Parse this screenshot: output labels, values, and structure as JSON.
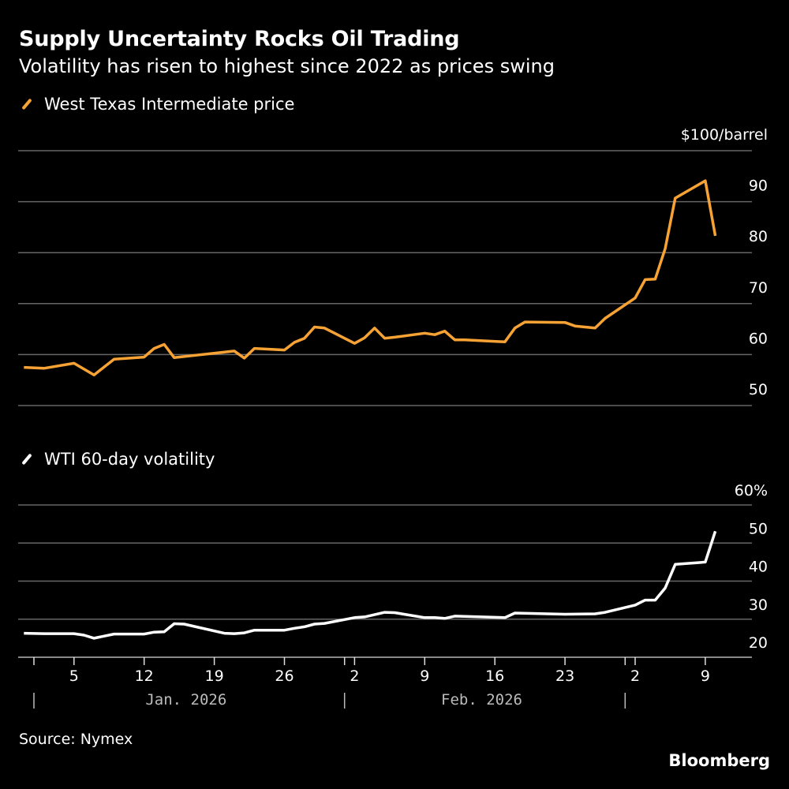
{
  "header": {
    "title": "Supply Uncertainty Rocks Oil Trading",
    "subtitle": "Volatility has risen to highest since 2022 as prices swing"
  },
  "footer": {
    "source": "Source: Nymex",
    "brand": "Bloomberg"
  },
  "colors": {
    "background": "#000000",
    "price_line": "#f7a234",
    "volatility_line": "#ffffff",
    "gridline": "#666666",
    "text": "#ffffff",
    "month_label": "#bbbbbb"
  },
  "chart_data": [
    {
      "type": "line",
      "title": "West Texas Intermediate price",
      "legend": "West Texas Intermediate price",
      "unit_label": "$100/barrel",
      "yticks": [
        50,
        60,
        70,
        80,
        90,
        100
      ],
      "ytick_labels": [
        "50",
        "60",
        "70",
        "80",
        "90",
        "$100/barrel"
      ],
      "ylim": [
        50,
        100
      ],
      "grid": true,
      "x_dates": [
        "2025-12-31",
        "2026-01-02",
        "2026-01-05",
        "2026-01-07",
        "2026-01-09",
        "2026-01-12",
        "2026-01-13",
        "2026-01-14",
        "2026-01-15",
        "2026-01-21",
        "2026-01-22",
        "2026-01-23",
        "2026-01-26",
        "2026-01-27",
        "2026-01-28",
        "2026-01-29",
        "2026-01-30",
        "2026-02-02",
        "2026-02-03",
        "2026-02-04",
        "2026-02-05",
        "2026-02-06",
        "2026-02-09",
        "2026-02-10",
        "2026-02-11",
        "2026-02-12",
        "2026-02-13",
        "2026-02-17",
        "2026-02-18",
        "2026-02-19",
        "2026-02-23",
        "2026-02-24",
        "2026-02-26",
        "2026-02-27",
        "2026-03-02",
        "2026-03-03",
        "2026-03-04",
        "2026-03-05",
        "2026-03-06",
        "2026-03-09",
        "2026-03-10"
      ],
      "values": [
        57.5,
        57.3,
        58.3,
        56.0,
        59.1,
        59.5,
        61.2,
        62.0,
        59.4,
        60.7,
        59.3,
        61.2,
        60.9,
        62.4,
        63.2,
        65.4,
        65.2,
        62.2,
        63.3,
        65.2,
        63.2,
        63.4,
        64.2,
        63.9,
        64.6,
        62.9,
        62.9,
        62.5,
        65.2,
        66.4,
        66.3,
        65.6,
        65.2,
        67.1,
        71.1,
        74.7,
        74.8,
        80.8,
        90.7,
        94.1,
        83.3
      ],
      "line_color": "#f7a234"
    },
    {
      "type": "line",
      "title": "WTI 60-day volatility",
      "legend": "WTI 60-day volatility",
      "unit_label": "60%",
      "yticks": [
        20,
        30,
        40,
        50,
        60
      ],
      "ytick_labels": [
        "20",
        "30",
        "40",
        "50",
        "60%"
      ],
      "ylim": [
        20,
        60
      ],
      "grid": true,
      "x_dates": [
        "2025-12-31",
        "2026-01-02",
        "2026-01-05",
        "2026-01-06",
        "2026-01-07",
        "2026-01-09",
        "2026-01-12",
        "2026-01-13",
        "2026-01-14",
        "2026-01-15",
        "2026-01-16",
        "2026-01-20",
        "2026-01-21",
        "2026-01-22",
        "2026-01-23",
        "2026-01-26",
        "2026-01-27",
        "2026-01-28",
        "2026-01-29",
        "2026-01-30",
        "2026-02-02",
        "2026-02-03",
        "2026-02-05",
        "2026-02-06",
        "2026-02-09",
        "2026-02-10",
        "2026-02-11",
        "2026-02-12",
        "2026-02-17",
        "2026-02-18",
        "2026-02-23",
        "2026-02-26",
        "2026-02-27",
        "2026-03-02",
        "2026-03-03",
        "2026-03-04",
        "2026-03-05",
        "2026-03-06",
        "2026-03-09",
        "2026-03-10"
      ],
      "values": [
        26.3,
        26.2,
        26.2,
        25.8,
        25.0,
        26.1,
        26.1,
        26.6,
        26.7,
        28.8,
        28.7,
        26.3,
        26.2,
        26.4,
        27.1,
        27.1,
        27.6,
        28.0,
        28.7,
        28.9,
        30.4,
        30.6,
        31.8,
        31.7,
        30.4,
        30.4,
        30.2,
        30.8,
        30.4,
        31.6,
        31.3,
        31.4,
        31.8,
        33.7,
        35.0,
        35.0,
        38.2,
        44.4,
        45.0,
        53.1
      ],
      "line_color": "#ffffff"
    }
  ],
  "x_axis": {
    "start_date": "2025-12-31",
    "end_date": "2026-03-13",
    "day_ticks": [
      {
        "date": "2026-01-05",
        "label": "5"
      },
      {
        "date": "2026-01-12",
        "label": "12"
      },
      {
        "date": "2026-01-19",
        "label": "19"
      },
      {
        "date": "2026-01-26",
        "label": "26"
      },
      {
        "date": "2026-02-02",
        "label": "2"
      },
      {
        "date": "2026-02-09",
        "label": "9"
      },
      {
        "date": "2026-02-16",
        "label": "16"
      },
      {
        "date": "2026-02-23",
        "label": "23"
      },
      {
        "date": "2026-03-02",
        "label": "2"
      },
      {
        "date": "2026-03-09",
        "label": "9"
      }
    ],
    "month_boundaries": [
      "2026-01-01",
      "2026-02-01",
      "2026-03-01"
    ],
    "month_labels": [
      {
        "label": "Jan. 2026",
        "start": "2026-01-01",
        "end": "2026-02-01"
      },
      {
        "label": "Feb. 2026",
        "start": "2026-02-01",
        "end": "2026-03-01"
      }
    ]
  }
}
